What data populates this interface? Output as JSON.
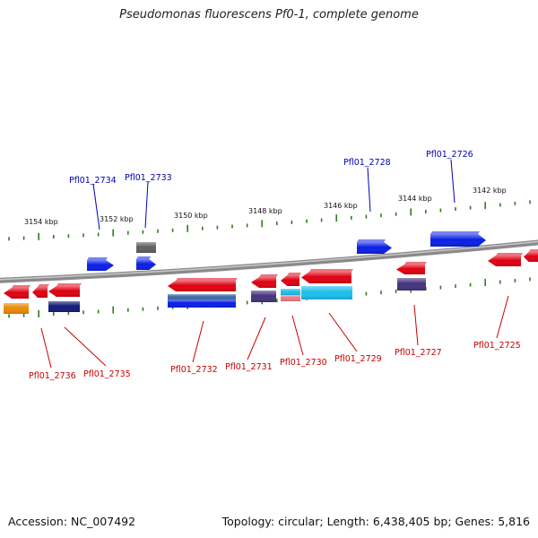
{
  "title": "Pseudomonas fluorescens Pf0-1, complete genome",
  "footer": {
    "accession": "Accession: NC_007492",
    "summary": "Topology: circular; Length: 6,438,405 bp; Genes: 5,816"
  },
  "colors": {
    "backbone": "#8a8a8a",
    "tick": "#2e7d1e",
    "label_forward": "#0000b4",
    "label_reverse": "#c80000",
    "red": "#e00010",
    "blue": "#0a1ee6",
    "navy": "#101c78",
    "purple": "#43337e",
    "cyan": "#1ebeee",
    "pink": "#e87a86",
    "orange": "#ee8800",
    "gray": "#606060",
    "steel": "#3f6ea8"
  },
  "scale_labels": [
    "3154 kbp",
    "3152 kbp",
    "3150 kbp",
    "3148 kbp",
    "3146 kbp",
    "3144 kbp",
    "3142 kbp"
  ],
  "forward_labels": [
    "Pfl01_2734",
    "Pfl01_2733",
    "Pfl01_2728",
    "Pfl01_2726"
  ],
  "reverse_labels": [
    "Pfl01_2736",
    "Pfl01_2735",
    "Pfl01_2732",
    "Pfl01_2731",
    "Pfl01_2730",
    "Pfl01_2729",
    "Pfl01_2727",
    "Pfl01_2725"
  ]
}
